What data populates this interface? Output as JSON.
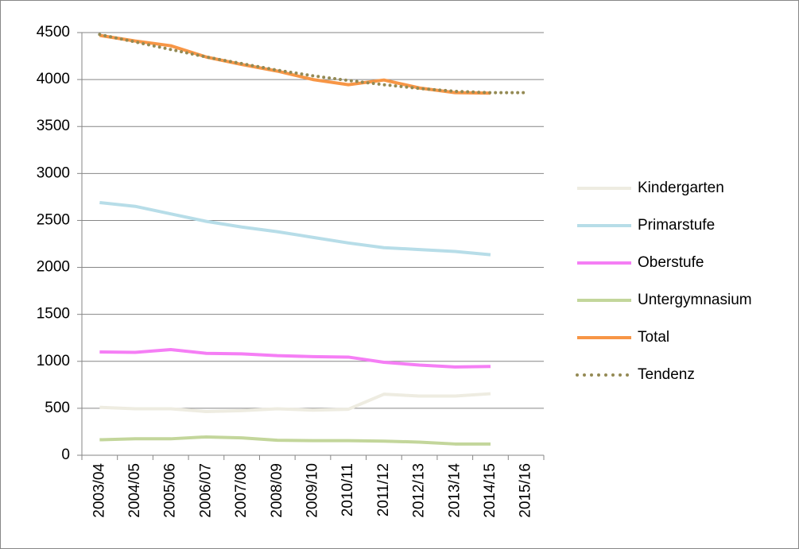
{
  "chart_data": {
    "type": "line",
    "categories": [
      "2003/04",
      "2004/05",
      "2005/06",
      "2006/07",
      "2007/08",
      "2008/09",
      "2009/10",
      "2010/11",
      "2011/12",
      "2012/13",
      "2013/14",
      "2014/15",
      "2015/16"
    ],
    "series": [
      {
        "name": "Kindergarten",
        "color": "#eeece1",
        "values": [
          510,
          495,
          495,
          465,
          475,
          495,
          480,
          490,
          650,
          630,
          630,
          655,
          null
        ]
      },
      {
        "name": "Primarstufe",
        "color": "#b7dde8",
        "values": [
          2690,
          2650,
          2570,
          2490,
          2430,
          2380,
          2320,
          2260,
          2210,
          2190,
          2170,
          2135,
          null
        ]
      },
      {
        "name": "Oberstufe",
        "color": "#f57ef5",
        "values": [
          1100,
          1095,
          1125,
          1085,
          1080,
          1060,
          1050,
          1045,
          990,
          960,
          940,
          945,
          null
        ]
      },
      {
        "name": "Untergymnasium",
        "color": "#c3d69b",
        "values": [
          165,
          175,
          175,
          195,
          185,
          160,
          155,
          155,
          150,
          140,
          120,
          120,
          null
        ]
      },
      {
        "name": "Total",
        "color": "#f79646",
        "values": [
          4470,
          4410,
          4360,
          4240,
          4160,
          4090,
          4000,
          3945,
          3995,
          3910,
          3860,
          3855,
          null
        ]
      },
      {
        "name": "Tendenz",
        "color": "#948a54",
        "style": "dotted",
        "values": [
          4480,
          4400,
          4320,
          4240,
          4170,
          4100,
          4040,
          3990,
          3945,
          3905,
          3875,
          3860,
          3860
        ]
      }
    ],
    "ylim": [
      0,
      4500
    ],
    "yticks": [
      0,
      500,
      1000,
      1500,
      2000,
      2500,
      3000,
      3500,
      4000,
      4500
    ],
    "grid": true,
    "legend": "right"
  }
}
